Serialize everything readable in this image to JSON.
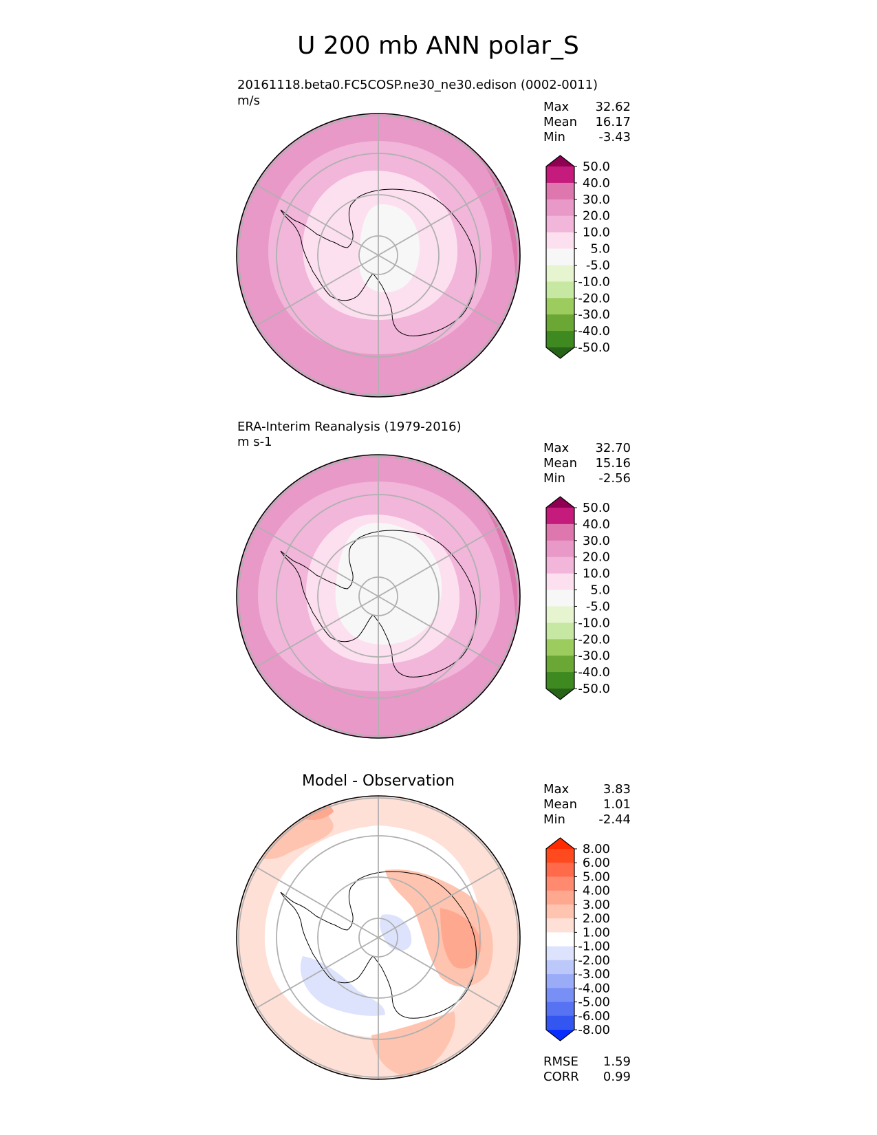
{
  "title": "U 200 mb ANN polar_S",
  "chart_data": [
    {
      "type": "heatmap",
      "projection": "south-polar-stereographic",
      "grid": true,
      "title": "",
      "subtitle": "20161118.beta0.FC5COSP.ne30_ne30.edison (0002-0011)",
      "units": "m/s",
      "stats": [
        {
          "label": "Max",
          "value": "32.62"
        },
        {
          "label": "Mean",
          "value": "16.17"
        },
        {
          "label": "Min",
          "value": "-3.43"
        }
      ],
      "colorbar": {
        "levels": [
          "50.0",
          "40.0",
          "30.0",
          "20.0",
          "10.0",
          "5.0",
          "-5.0",
          "-10.0",
          "-20.0",
          "-30.0",
          "-40.0",
          "-50.0"
        ],
        "colors": [
          "#8e0152",
          "#c51b7d",
          "#de77ae",
          "#e899c8",
          "#f1b6da",
          "#fde0ef",
          "#f7f7f7",
          "#e6f5d0",
          "#c6e8a2",
          "#9ccc5e",
          "#6aa734",
          "#3e8920",
          "#276419"
        ]
      },
      "rings": [
        {
          "label": "20-30",
          "color": "#e899c8"
        },
        {
          "label": "10-20",
          "color": "#f1b6da"
        },
        {
          "label": "5-10",
          "color": "#fde0ef"
        },
        {
          "label": "-5-5",
          "color": "#f7f7f7"
        }
      ],
      "extremes": [
        {
          "label": "30-40",
          "color": "#de77ae"
        }
      ]
    },
    {
      "type": "heatmap",
      "projection": "south-polar-stereographic",
      "grid": true,
      "title": "",
      "subtitle": "ERA-Interim Reanalysis (1979-2016)",
      "units": "m s-1",
      "stats": [
        {
          "label": "Max",
          "value": "32.70"
        },
        {
          "label": "Mean",
          "value": "15.16"
        },
        {
          "label": "Min",
          "value": "-2.56"
        }
      ],
      "colorbar": {
        "levels": [
          "50.0",
          "40.0",
          "30.0",
          "20.0",
          "10.0",
          "5.0",
          "-5.0",
          "-10.0",
          "-20.0",
          "-30.0",
          "-40.0",
          "-50.0"
        ],
        "colors": [
          "#8e0152",
          "#c51b7d",
          "#de77ae",
          "#e899c8",
          "#f1b6da",
          "#fde0ef",
          "#f7f7f7",
          "#e6f5d0",
          "#c6e8a2",
          "#9ccc5e",
          "#6aa734",
          "#3e8920",
          "#276419"
        ]
      },
      "rings": [
        {
          "label": "20-30",
          "color": "#e899c8"
        },
        {
          "label": "10-20",
          "color": "#f1b6da"
        },
        {
          "label": "5-10",
          "color": "#fde0ef"
        },
        {
          "label": "-5-5",
          "color": "#f7f7f7"
        }
      ],
      "extremes": [
        {
          "label": "30-40",
          "color": "#de77ae"
        }
      ]
    },
    {
      "type": "heatmap",
      "projection": "south-polar-stereographic",
      "grid": true,
      "title": "Model - Observation",
      "subtitle": "",
      "units": "",
      "stats": [
        {
          "label": "Max",
          "value": "3.83"
        },
        {
          "label": "Mean",
          "value": "1.01"
        },
        {
          "label": "Min",
          "value": "-2.44"
        }
      ],
      "colorbar": {
        "levels": [
          "8.00",
          "6.00",
          "5.00",
          "4.00",
          "3.00",
          "2.00",
          "1.00",
          "-1.00",
          "-2.00",
          "-3.00",
          "-4.00",
          "-5.00",
          "-6.00",
          "-8.00"
        ],
        "colors": [
          "#ff2a00",
          "#ff4a1f",
          "#ff6a4a",
          "#ff8a70",
          "#ffa890",
          "#ffc4b0",
          "#ffe0d6",
          "#ffffff",
          "#dde3fc",
          "#bcc8fa",
          "#9aacf7",
          "#7890f5",
          "#5772f2",
          "#3456f0",
          "#0a2dff"
        ]
      },
      "rings": [
        {
          "label": "1-2",
          "color": "#ffe0d6"
        },
        {
          "label": "-1-1",
          "color": "#ffffff"
        }
      ],
      "extremes": [
        {
          "label": "2-3",
          "color": "#ffc4b0"
        },
        {
          "label": "3-4",
          "color": "#ffa890"
        },
        {
          "label": "-2--1",
          "color": "#dde3fc"
        }
      ],
      "metrics": [
        {
          "label": "RMSE",
          "value": "1.59"
        },
        {
          "label": "CORR",
          "value": "0.99"
        }
      ]
    }
  ]
}
